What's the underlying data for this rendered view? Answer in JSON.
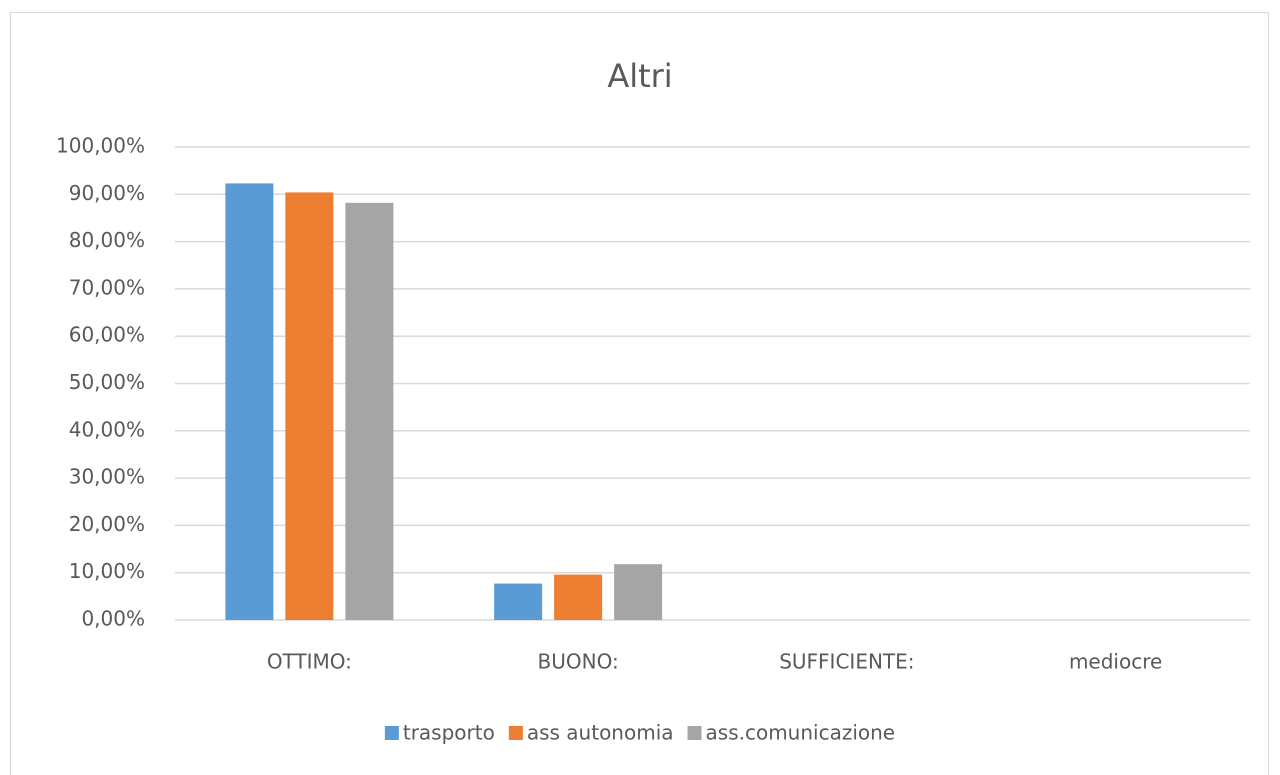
{
  "chart_data": {
    "type": "bar",
    "title": "Altri",
    "categories": [
      "OTTIMO:",
      "BUONO:",
      "SUFFICIENTE:",
      "mediocre"
    ],
    "series": [
      {
        "name": "trasporto",
        "color": "#5b9bd5",
        "values": [
          92.3,
          7.7,
          0,
          0
        ]
      },
      {
        "name": "ass autonomia",
        "color": "#ed7d31",
        "values": [
          90.4,
          9.6,
          0,
          0
        ]
      },
      {
        "name": "ass.comunicazione",
        "color": "#a5a5a5",
        "values": [
          88.2,
          11.8,
          0,
          0
        ]
      }
    ],
    "ylim": [
      0,
      100
    ],
    "yticks": [
      {
        "value": 0,
        "label": "0,00%"
      },
      {
        "value": 10,
        "label": "10,00%"
      },
      {
        "value": 20,
        "label": "20,00%"
      },
      {
        "value": 30,
        "label": "30,00%"
      },
      {
        "value": 40,
        "label": "40,00%"
      },
      {
        "value": 50,
        "label": "50,00%"
      },
      {
        "value": 60,
        "label": "60,00%"
      },
      {
        "value": 70,
        "label": "70,00%"
      },
      {
        "value": 80,
        "label": "80,00%"
      },
      {
        "value": 90,
        "label": "90,00%"
      },
      {
        "value": 100,
        "label": "100,00%"
      }
    ],
    "grid": true,
    "legend": "bottom"
  }
}
